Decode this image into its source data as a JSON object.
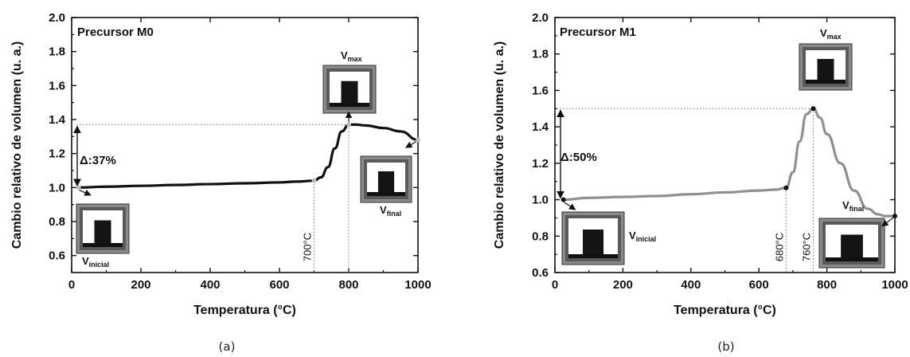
{
  "chart_data": [
    {
      "type": "line",
      "panel_label": "(a)",
      "title": "Precursor M0",
      "xlabel": "Temperatura (°C)",
      "ylabel": "Cambio relativo de volumen (u. a.)",
      "xlim": [
        0,
        1000
      ],
      "ylim": [
        0.5,
        2.0
      ],
      "xticks": [
        0,
        200,
        400,
        600,
        800,
        1000
      ],
      "yticks": [
        0.6,
        0.8,
        1.0,
        1.2,
        1.4,
        1.6,
        1.8,
        2.0
      ],
      "line_color": "#111111",
      "series": [
        {
          "x": [
            20,
            100,
            200,
            300,
            400,
            500,
            600,
            650,
            700,
            720,
            740,
            760,
            780,
            800,
            820,
            850,
            900,
            950,
            1000
          ],
          "y": [
            1.0,
            1.005,
            1.01,
            1.015,
            1.02,
            1.025,
            1.03,
            1.035,
            1.04,
            1.06,
            1.12,
            1.23,
            1.33,
            1.37,
            1.37,
            1.365,
            1.35,
            1.33,
            1.28
          ]
        }
      ],
      "delta_label": "Δ:37%",
      "delta_range": [
        1.0,
        1.37
      ],
      "temp_markers": [
        {
          "x": 700,
          "label": "700°C"
        }
      ],
      "volume_labels": {
        "vmax": {
          "main": "V",
          "sub": "max"
        },
        "vinicial": {
          "main": "V",
          "sub": "inicial"
        },
        "vfinal": {
          "main": "V",
          "sub": "final"
        }
      }
    },
    {
      "type": "line",
      "panel_label": "(b)",
      "title": "Precursor M1",
      "xlabel": "Temperatura (°C)",
      "ylabel": "Cambio relativo de volumen (u. a.)",
      "xlim": [
        0,
        1000
      ],
      "ylim": [
        0.6,
        2.0
      ],
      "xticks": [
        0,
        200,
        400,
        600,
        800,
        1000
      ],
      "yticks": [
        0.6,
        0.8,
        1.0,
        1.2,
        1.4,
        1.6,
        1.8,
        2.0
      ],
      "line_color": "#8f8f8f",
      "series": [
        {
          "x": [
            25,
            100,
            200,
            300,
            400,
            500,
            600,
            650,
            680,
            700,
            720,
            740,
            760,
            780,
            800,
            840,
            880,
            920,
            950,
            970,
            1000
          ],
          "y": [
            1.0,
            1.01,
            1.015,
            1.02,
            1.03,
            1.04,
            1.05,
            1.055,
            1.065,
            1.15,
            1.32,
            1.47,
            1.5,
            1.45,
            1.36,
            1.2,
            1.05,
            0.95,
            0.92,
            0.91,
            0.91
          ]
        }
      ],
      "delta_label": "Δ:50%",
      "delta_range": [
        1.0,
        1.5
      ],
      "temp_markers": [
        {
          "x": 680,
          "label": "680°C"
        },
        {
          "x": 760,
          "label": "760°C"
        }
      ],
      "volume_labels": {
        "vmax": {
          "main": "V",
          "sub": "max"
        },
        "vinicial": {
          "main": "V",
          "sub": "inicial"
        },
        "vfinal": {
          "main": "V",
          "sub": "final"
        }
      }
    }
  ]
}
